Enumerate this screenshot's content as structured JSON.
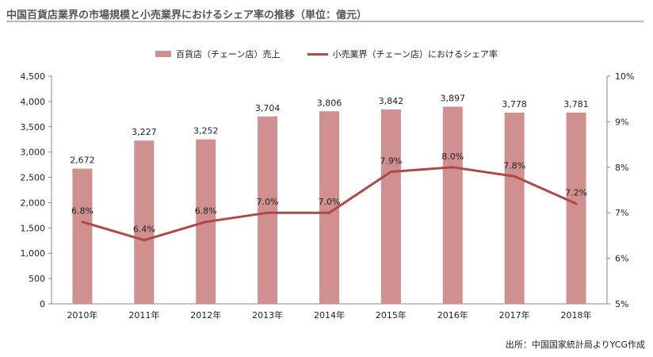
{
  "title": "中国百貨店業界の市場規模と小売業界におけるシェア率の推移（単位：億元）",
  "source": "出所：中国国家統計局よりYCG作成",
  "colors": {
    "bar": "#d09090",
    "line": "#b04848",
    "axis": "#888888",
    "grid": "#d9d9d9"
  },
  "chart_data": {
    "type": "bar",
    "categories": [
      "2010年",
      "2011年",
      "2012年",
      "2013年",
      "2014年",
      "2015年",
      "2016年",
      "2017年",
      "2018年"
    ],
    "series": [
      {
        "name": "百貨店（チェーン店）売上",
        "type": "bar",
        "axis": "left",
        "values": [
          2672,
          3227,
          3252,
          3704,
          3806,
          3842,
          3897,
          3778,
          3781
        ],
        "labels": [
          "2,672",
          "3,227",
          "3,252",
          "3,704",
          "3,806",
          "3,842",
          "3,897",
          "3,778",
          "3,781"
        ]
      },
      {
        "name": "小売業界（チェーン店）におけるシェア率",
        "type": "line",
        "axis": "right",
        "values": [
          6.8,
          6.4,
          6.8,
          7.0,
          7.0,
          7.9,
          8.0,
          7.8,
          7.2
        ],
        "labels": [
          "6.8%",
          "6.4%",
          "6.8%",
          "7.0%",
          "7.0%",
          "7.9%",
          "8.0%",
          "7.8%",
          "7.2%"
        ]
      }
    ],
    "ylim_left": [
      0,
      4500
    ],
    "yticks_left": [
      "0",
      "500",
      "1,000",
      "1,500",
      "2,000",
      "2,500",
      "3,000",
      "3,500",
      "4,000",
      "4,500"
    ],
    "ylim_right": [
      5,
      10
    ],
    "yticks_right": [
      "5%",
      "6%",
      "7%",
      "8%",
      "9%",
      "10%"
    ],
    "legend_position": "top-center",
    "grid": false
  }
}
